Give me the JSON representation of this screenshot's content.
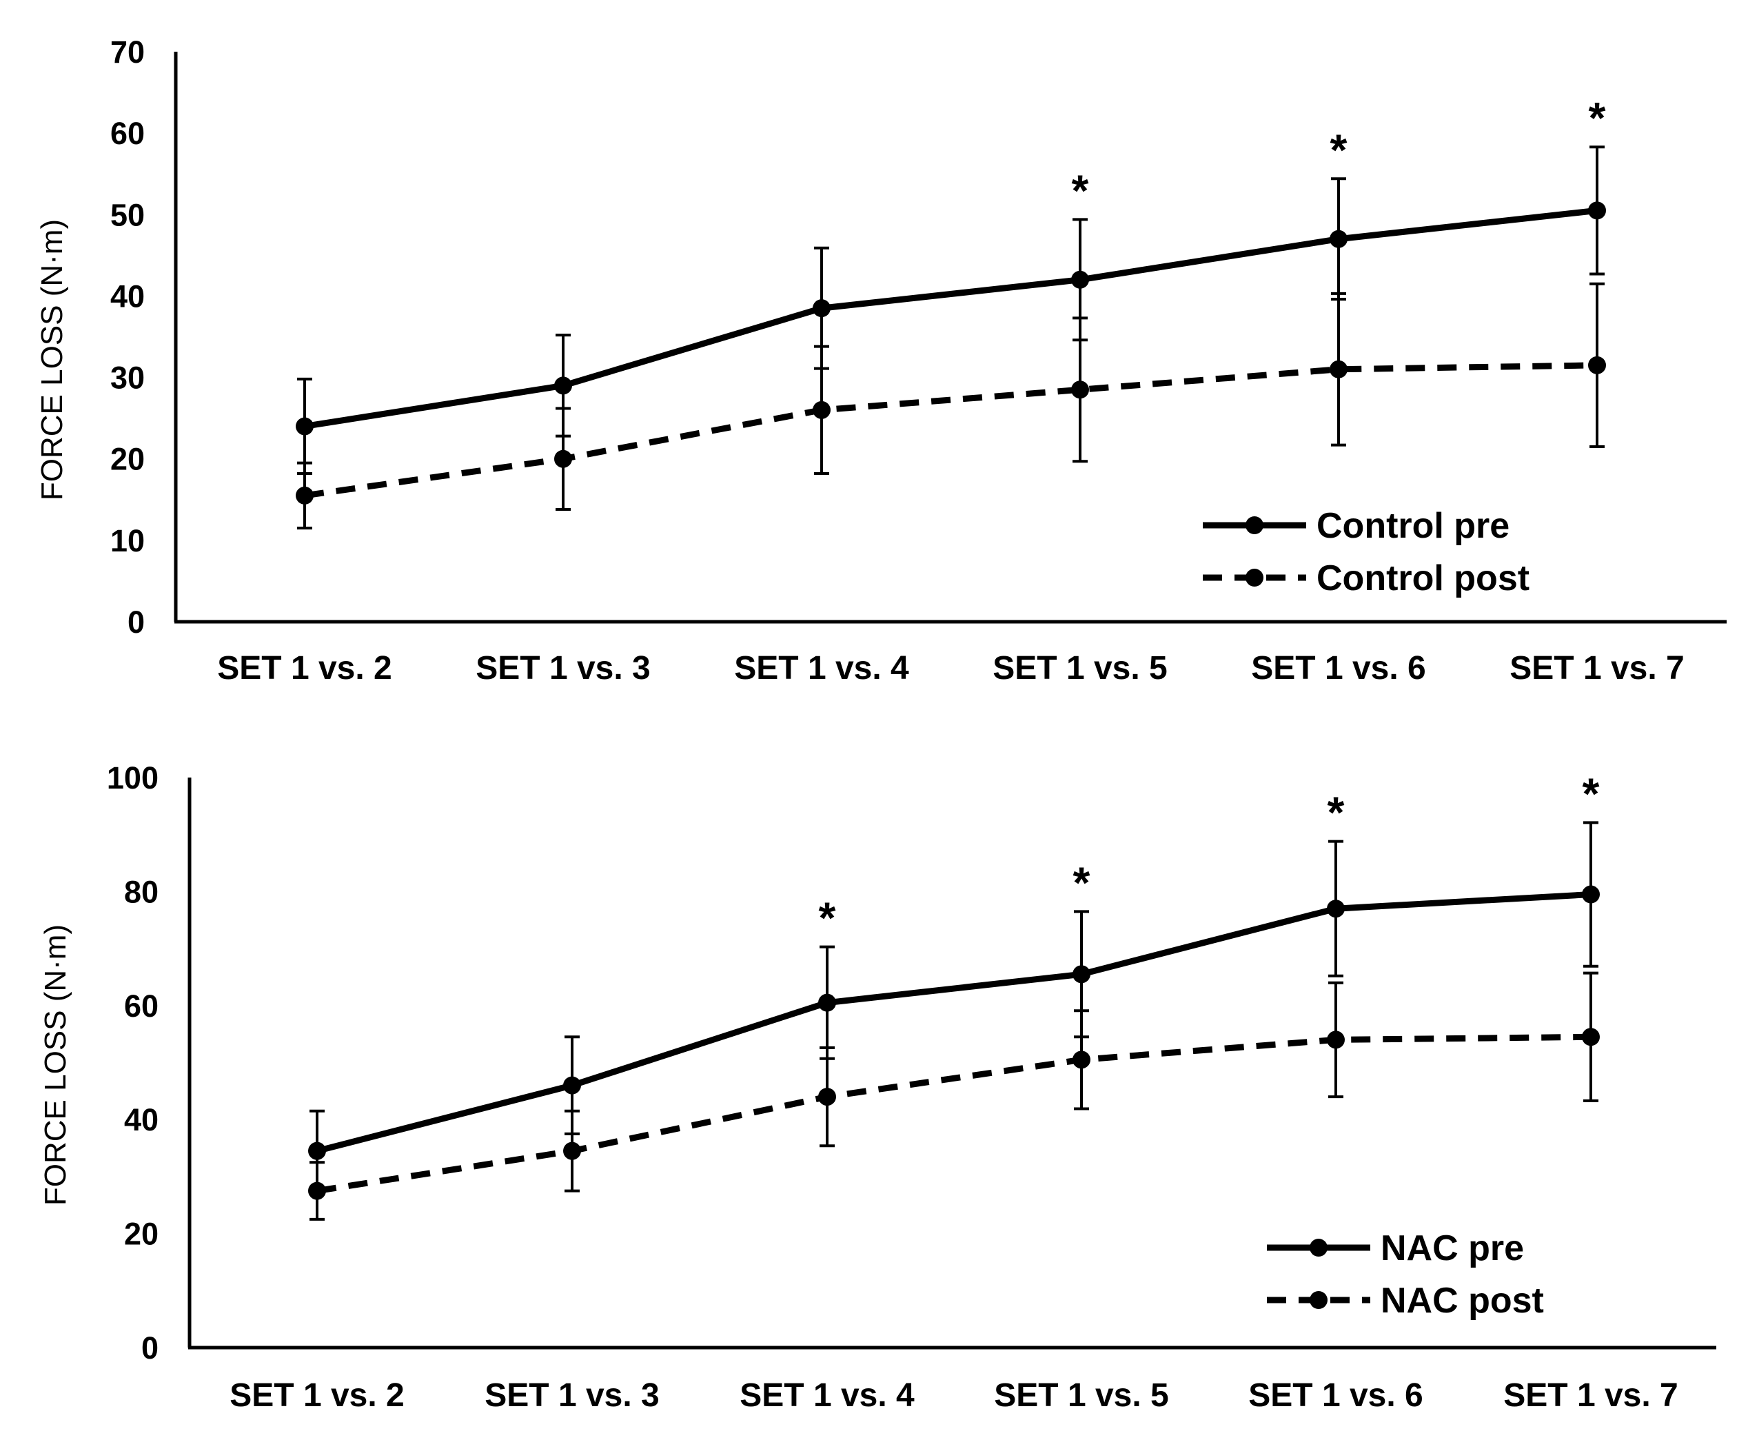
{
  "chart_data": [
    {
      "type": "line",
      "categories": [
        "SET 1 vs. 2",
        "SET 1 vs. 3",
        "SET 1 vs. 4",
        "SET 1 vs. 5",
        "SET 1 vs. 6",
        "SET 1 vs. 7"
      ],
      "ylabel": "FORCE LOSS (N·m)",
      "xlabel": "",
      "ylim": [
        0,
        70
      ],
      "yticks": [
        "0",
        "10",
        "20",
        "30",
        "40",
        "50",
        "60",
        "70"
      ],
      "grid": false,
      "legend_position": "bottom-right",
      "series": [
        {
          "name": "Control pre",
          "style": "solid",
          "values": [
            24,
            29,
            38.5,
            42,
            47,
            50.5
          ],
          "error": [
            5.8,
            6.2,
            7.4,
            7.4,
            7.4,
            7.8
          ]
        },
        {
          "name": "Control post",
          "style": "dashed",
          "values": [
            15.5,
            20,
            26,
            28.5,
            31,
            31.5
          ],
          "error": [
            4,
            6.2,
            7.8,
            8.8,
            9.3,
            10
          ]
        }
      ],
      "significance_marker": "*",
      "significant": [
        false,
        false,
        false,
        true,
        true,
        true
      ]
    },
    {
      "type": "line",
      "categories": [
        "SET 1 vs. 2",
        "SET 1 vs. 3",
        "SET 1 vs. 4",
        "SET 1 vs. 5",
        "SET 1 vs. 6",
        "SET 1 vs. 7"
      ],
      "ylabel": "FORCE LOSS (N·m)",
      "xlabel": "",
      "ylim": [
        0,
        100
      ],
      "yticks": [
        "0",
        "20",
        "40",
        "60",
        "80",
        "100"
      ],
      "grid": false,
      "legend_position": "bottom-right",
      "series": [
        {
          "name": "NAC pre",
          "style": "solid",
          "values": [
            34.5,
            46,
            60.5,
            65.5,
            77,
            79.5
          ],
          "error": [
            7,
            8.5,
            9.8,
            11,
            11.8,
            12.6
          ]
        },
        {
          "name": "NAC post",
          "style": "dashed",
          "values": [
            27.5,
            34.5,
            44,
            50.5,
            54,
            54.5
          ],
          "error": [
            5,
            7,
            8.6,
            8.6,
            10,
            11.2
          ]
        }
      ],
      "significance_marker": "*",
      "significant": [
        false,
        false,
        true,
        true,
        true,
        true
      ]
    }
  ]
}
